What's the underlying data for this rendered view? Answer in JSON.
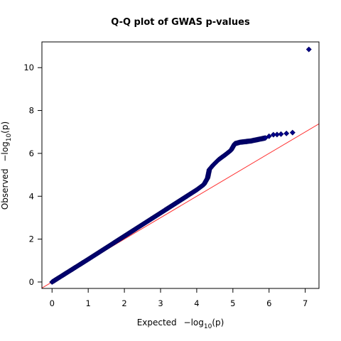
{
  "chart_data": {
    "type": "scatter",
    "title": "Q-Q plot of GWAS p-values",
    "xlabel": {
      "prefix": "Expected",
      "sym": "−log",
      "sub": "10",
      "arg": "(p)"
    },
    "ylabel": {
      "prefix": "Observed",
      "sym": "−log",
      "sub": "10",
      "arg": "(p)"
    },
    "xlim": [
      -0.28,
      7.38
    ],
    "ylim": [
      -0.3,
      11.2
    ],
    "x_ticks": [
      "0",
      "1",
      "2",
      "3",
      "4",
      "5",
      "6",
      "7"
    ],
    "y_ticks": [
      "0",
      "2",
      "4",
      "6",
      "8",
      "10"
    ],
    "reference_line": {
      "slope": 1,
      "intercept": 0,
      "color": "#ff3030"
    },
    "point_color": "#00008b",
    "marker": "diamond",
    "dense_curve": [
      [
        0.0,
        0.0
      ],
      [
        0.5,
        0.53
      ],
      [
        1.0,
        1.06
      ],
      [
        1.5,
        1.6
      ],
      [
        2.0,
        2.14
      ],
      [
        2.5,
        2.68
      ],
      [
        3.0,
        3.22
      ],
      [
        3.5,
        3.76
      ],
      [
        4.0,
        4.3
      ],
      [
        4.2,
        4.55
      ],
      [
        4.3,
        4.85
      ],
      [
        4.35,
        5.25
      ],
      [
        4.45,
        5.45
      ],
      [
        4.6,
        5.7
      ],
      [
        4.8,
        5.95
      ],
      [
        4.95,
        6.15
      ],
      [
        5.05,
        6.45
      ],
      [
        5.2,
        6.52
      ],
      [
        5.5,
        6.58
      ],
      [
        5.9,
        6.72
      ]
    ],
    "sparse_points": [
      [
        6.0,
        6.8
      ],
      [
        6.12,
        6.87
      ],
      [
        6.22,
        6.88
      ],
      [
        6.33,
        6.9
      ],
      [
        6.48,
        6.93
      ],
      [
        6.65,
        6.97
      ],
      [
        7.1,
        10.85
      ]
    ]
  }
}
